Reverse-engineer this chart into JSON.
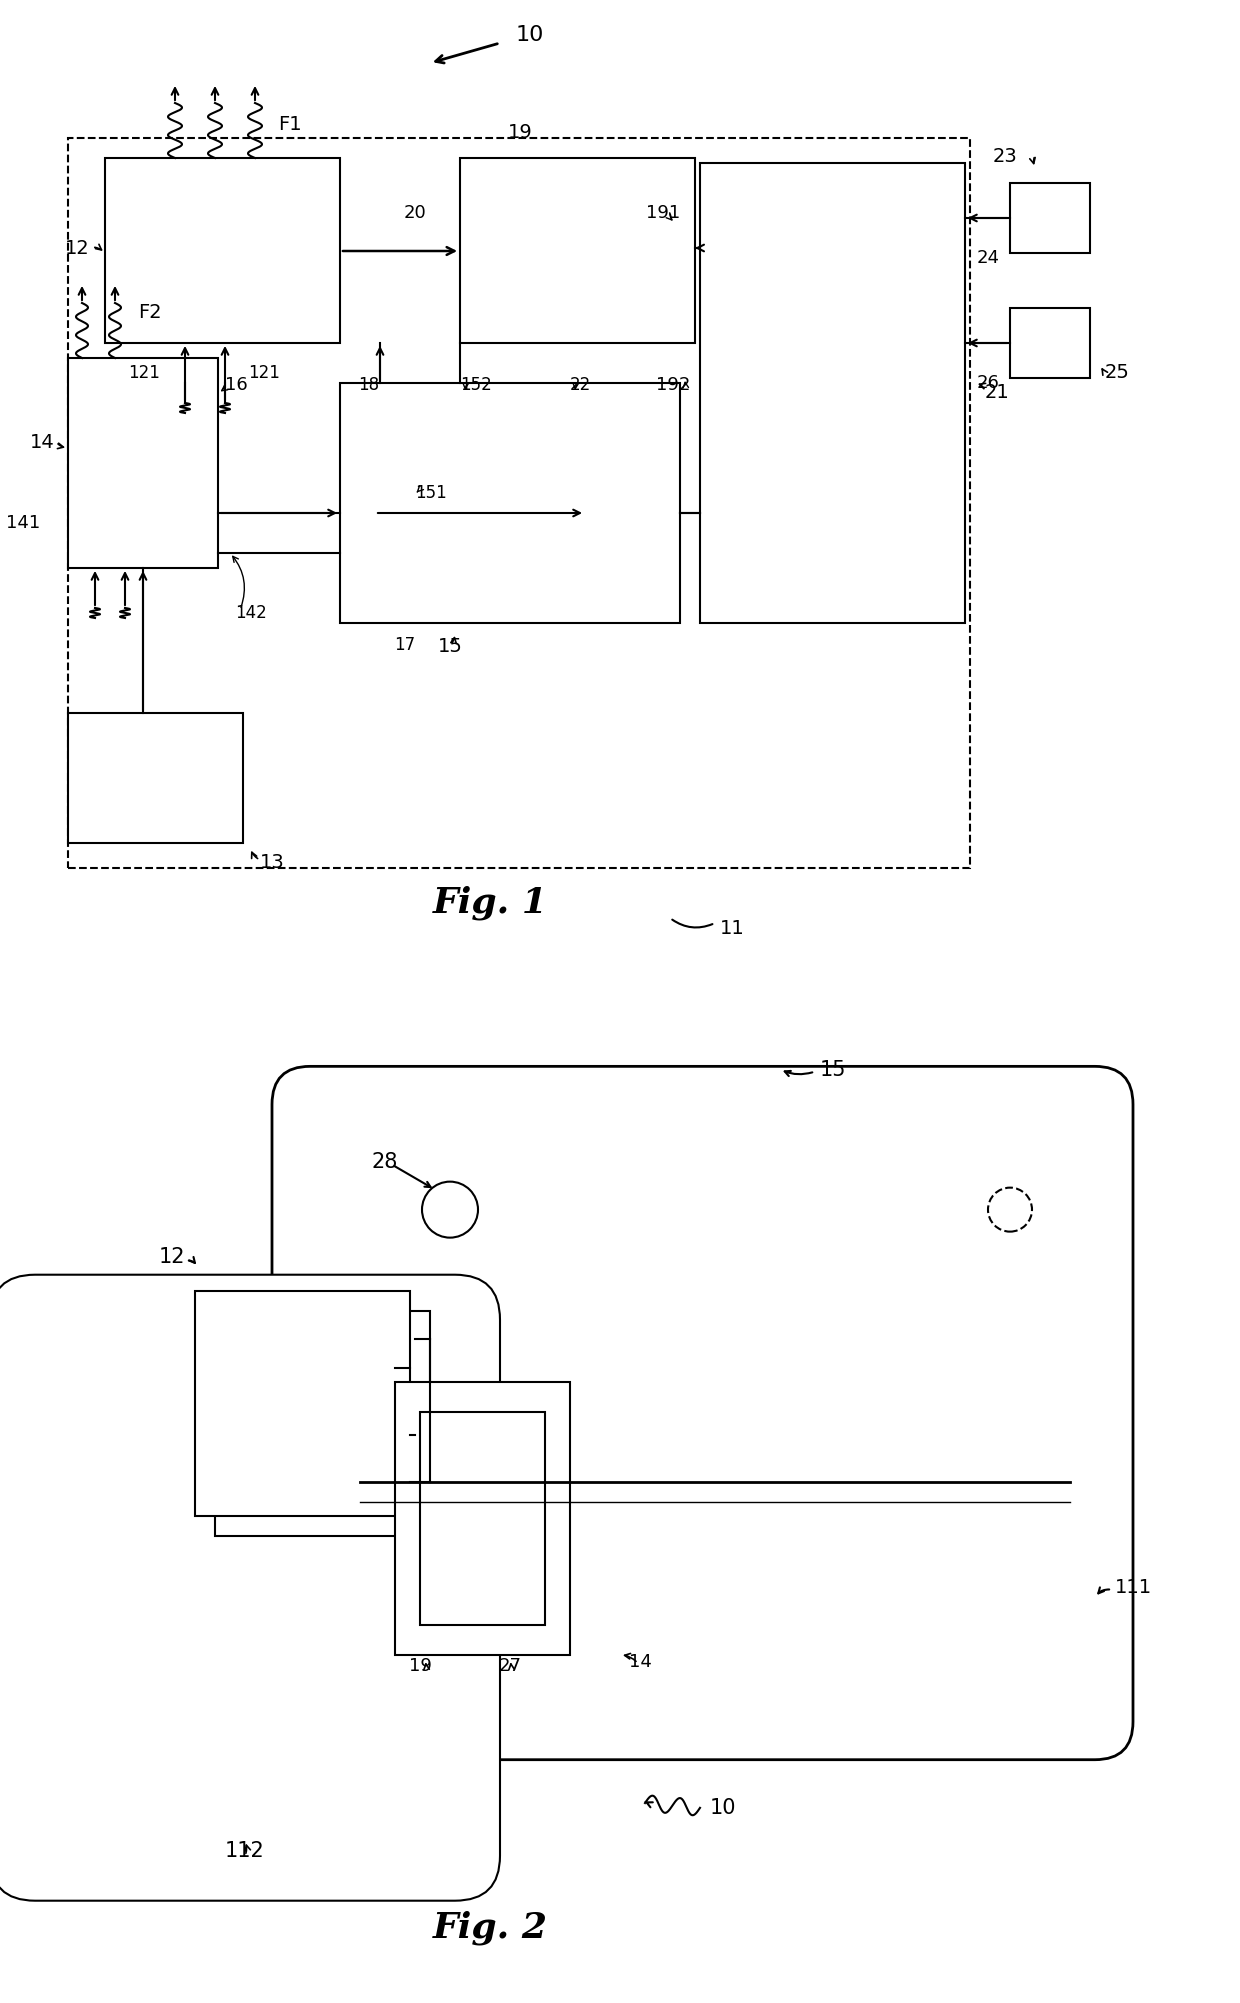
{
  "bg_color": "#ffffff",
  "lw": 1.5,
  "fig1_title": "Fig. 1",
  "fig2_title": "Fig. 2"
}
